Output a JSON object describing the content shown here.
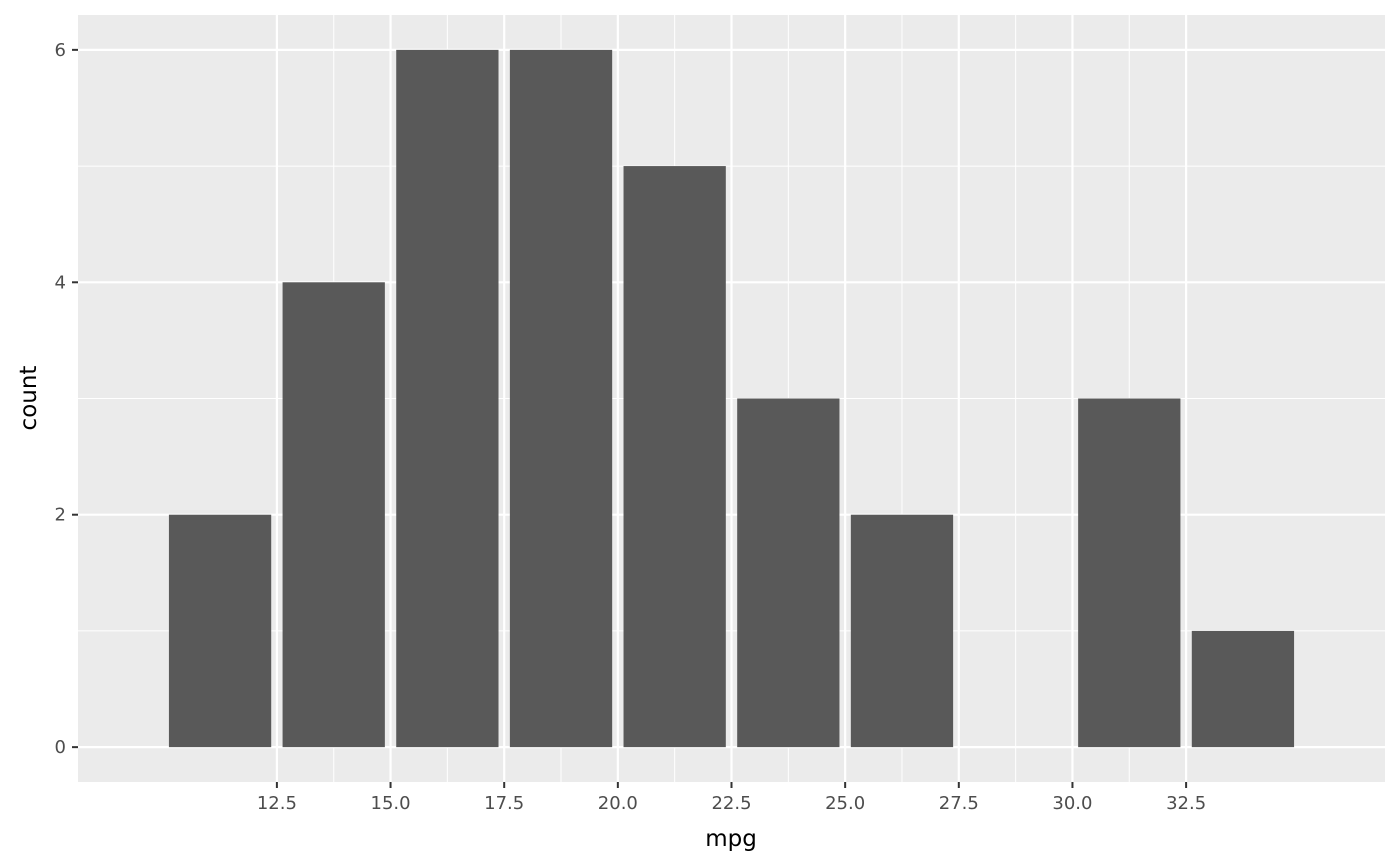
{
  "chart_data": {
    "type": "bar",
    "x_centers": [
      11.25,
      13.75,
      16.25,
      18.75,
      21.25,
      23.75,
      26.25,
      28.75,
      31.25,
      33.75
    ],
    "values": [
      2,
      4,
      6,
      6,
      5,
      3,
      2,
      0,
      3,
      1
    ],
    "bar_width": 2.25,
    "xlabel": "mpg",
    "ylabel": "count",
    "xlim": [
      8.125,
      36.875
    ],
    "ylim": [
      -0.3,
      6.3
    ],
    "x_ticks": [
      "12.5",
      "15.0",
      "17.5",
      "20.0",
      "22.5",
      "25.0",
      "27.5",
      "30.0",
      "32.5"
    ],
    "y_ticks": [
      "0",
      "2",
      "4",
      "6"
    ],
    "grid": true
  },
  "colors": {
    "panel": "#ebebeb",
    "grid": "#ffffff",
    "bar": "#595959",
    "tick": "#333333",
    "tick_label": "#4d4d4d"
  }
}
